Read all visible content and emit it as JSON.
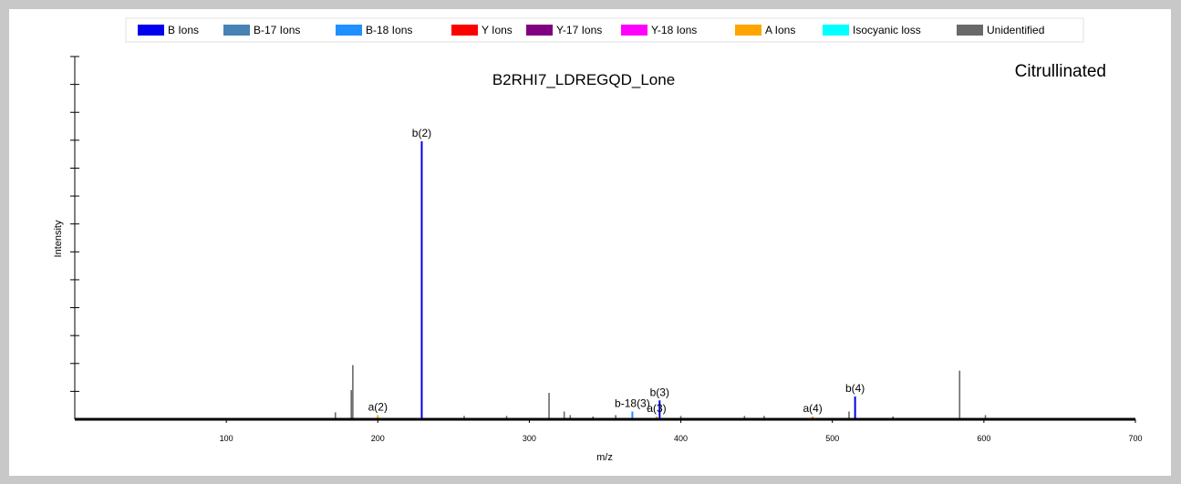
{
  "colors": {
    "background": "#c8c8c8",
    "plot_background": "#ffffff",
    "axis": "#000000"
  },
  "chart_data": {
    "type": "bar",
    "title": "B2RHI7_LDREGQD_Lone",
    "corner_label": "Citrullinated",
    "xlabel": "m/z",
    "ylabel": "Intensity",
    "xlim": [
      0,
      700
    ],
    "ylim": [
      0,
      100
    ],
    "x_ticks": [
      100,
      200,
      300,
      400,
      500,
      600,
      700
    ],
    "y_tick_count": 13,
    "grid": false,
    "legend_position": "top",
    "legend": [
      {
        "name": "B Ions",
        "color": "#0000ee"
      },
      {
        "name": "B-17 Ions",
        "color": "#4682b4"
      },
      {
        "name": "B-18 Ions",
        "color": "#1e90ff"
      },
      {
        "name": "Y Ions",
        "color": "#ff0000"
      },
      {
        "name": "Y-17 Ions",
        "color": "#800080"
      },
      {
        "name": "Y-18 Ions",
        "color": "#ff00ff"
      },
      {
        "name": "A Ions",
        "color": "#ffa500"
      },
      {
        "name": "Isocyanic loss",
        "color": "#00ffff"
      },
      {
        "name": "Unidentified",
        "color": "#696969"
      }
    ],
    "peaks": [
      {
        "mz": 172,
        "intensity": 2.5,
        "type": "Unidentified"
      },
      {
        "mz": 182.5,
        "intensity": 10.5,
        "type": "Unidentified"
      },
      {
        "mz": 183.5,
        "intensity": 19.5,
        "type": "Unidentified"
      },
      {
        "mz": 200,
        "intensity": 1.5,
        "type": "A Ions",
        "label": "a(2)"
      },
      {
        "mz": 229,
        "intensity": 100,
        "type": "B Ions",
        "label": "b(2)"
      },
      {
        "mz": 257,
        "intensity": 1.2,
        "type": "Unidentified"
      },
      {
        "mz": 285,
        "intensity": 1.2,
        "type": "Unidentified"
      },
      {
        "mz": 313,
        "intensity": 9.5,
        "type": "Unidentified"
      },
      {
        "mz": 323,
        "intensity": 2.8,
        "type": "Unidentified"
      },
      {
        "mz": 327,
        "intensity": 1.5,
        "type": "Unidentified"
      },
      {
        "mz": 342,
        "intensity": 1.0,
        "type": "Unidentified"
      },
      {
        "mz": 357,
        "intensity": 1.5,
        "type": "Unidentified"
      },
      {
        "mz": 368,
        "intensity": 2.8,
        "type": "B-18 Ions",
        "label": "b-18(3)"
      },
      {
        "mz": 384,
        "intensity": 1.0,
        "type": "A Ions",
        "label": "a(3)"
      },
      {
        "mz": 386,
        "intensity": 6.8,
        "type": "B Ions",
        "label": "b(3)"
      },
      {
        "mz": 400,
        "intensity": 1.2,
        "type": "Unidentified"
      },
      {
        "mz": 442,
        "intensity": 1.2,
        "type": "Unidentified"
      },
      {
        "mz": 455,
        "intensity": 1.2,
        "type": "Unidentified"
      },
      {
        "mz": 487,
        "intensity": 1.0,
        "type": "A Ions",
        "label": "a(4)"
      },
      {
        "mz": 511,
        "intensity": 2.8,
        "type": "Unidentified"
      },
      {
        "mz": 515,
        "intensity": 8.2,
        "type": "B Ions",
        "label": "b(4)"
      },
      {
        "mz": 540,
        "intensity": 1.0,
        "type": "Unidentified"
      },
      {
        "mz": 584,
        "intensity": 17.5,
        "type": "Unidentified"
      },
      {
        "mz": 601,
        "intensity": 1.5,
        "type": "Unidentified"
      }
    ]
  }
}
